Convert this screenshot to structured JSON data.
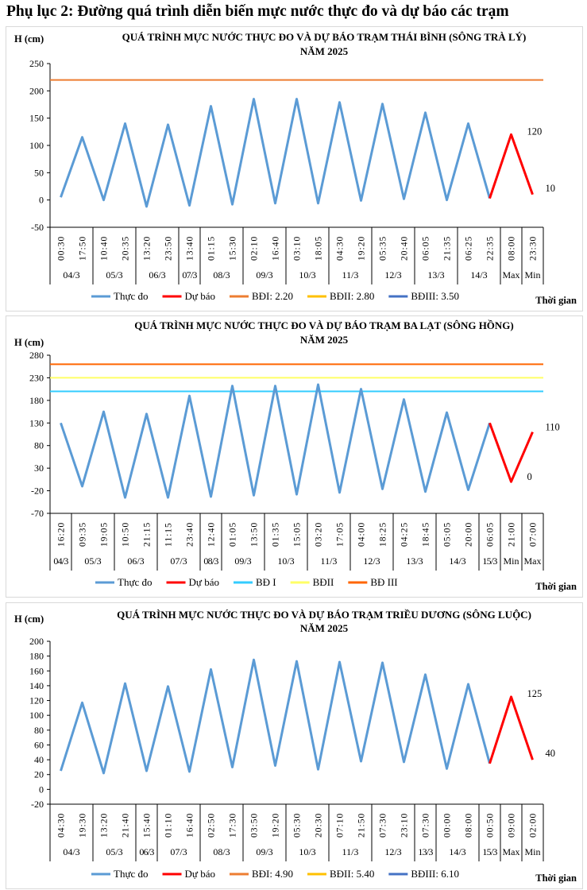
{
  "page_title": "Phụ lục 2: Đường quá trình diễn biến mực nước thực đo và dự báo các trạm",
  "chart_data": [
    {
      "type": "line",
      "title": [
        "QUÁ TRÌNH MỰC NƯỚC THỰC ĐO VÀ DỰ BÁO TRẠM THÁI BÌNH (SÔNG TRÀ LÝ)",
        "NĂM 2025"
      ],
      "ylabel": "H (cm)",
      "xlabel": "Thời gian",
      "ylim": [
        -50,
        250
      ],
      "ytick_step": 50,
      "times": [
        "00:30",
        "17:50",
        "10:40",
        "20:35",
        "13:20",
        "23:50",
        "13:40",
        "01:15",
        "15:30",
        "02:10",
        "16:40",
        "03:10",
        "18:05",
        "04:30",
        "19:20",
        "05:35",
        "20:40",
        "06:05",
        "21:35",
        "06:25",
        "22:35",
        "08:00",
        "23:30"
      ],
      "groups": [
        [
          "04/3",
          2
        ],
        [
          "05/3",
          2
        ],
        [
          "06/3",
          2
        ],
        [
          "07/3",
          1
        ],
        [
          "08/3",
          2
        ],
        [
          "09/3",
          2
        ],
        [
          "10/3",
          2
        ],
        [
          "11/3",
          2
        ],
        [
          "12/3",
          2
        ],
        [
          "13/3",
          2
        ],
        [
          "14/3",
          2
        ],
        [
          "Max",
          1
        ],
        [
          "Min",
          1
        ]
      ],
      "series": [
        {
          "name": "Thực đo",
          "color": "#5B9BD5",
          "values": [
            5,
            115,
            0,
            140,
            -12,
            138,
            -10,
            172,
            -8,
            185,
            -6,
            185,
            -6,
            179,
            -1,
            176,
            2,
            160,
            0,
            140,
            3,
            null,
            null
          ]
        },
        {
          "name": "Dự báo",
          "color": "#FF0000",
          "values": [
            null,
            null,
            null,
            null,
            null,
            null,
            null,
            null,
            null,
            null,
            null,
            null,
            null,
            null,
            null,
            null,
            null,
            null,
            null,
            null,
            3,
            120,
            10
          ],
          "labels": [
            null,
            null,
            null,
            null,
            null,
            null,
            null,
            null,
            null,
            null,
            null,
            null,
            null,
            null,
            null,
            null,
            null,
            null,
            null,
            null,
            null,
            "120",
            "10"
          ]
        }
      ],
      "thresholds": [
        {
          "name": "BĐI: 2.20",
          "color": "#ED7D31",
          "value": 220
        },
        {
          "name": "BĐII: 2.80",
          "color": "#FFC000",
          "value": 280
        },
        {
          "name": "BĐIII: 3.50",
          "color": "#4472C4",
          "value": 350
        }
      ]
    },
    {
      "type": "line",
      "title": [
        "QUÁ TRÌNH MỰC NƯỚC THỰC ĐO VÀ DỰ BÁO TRẠM BA LẠT (SÔNG HỒNG)",
        "NĂM 2025"
      ],
      "ylabel": "H (cm)",
      "xlabel": "Thời gian",
      "ylim": [
        -70,
        280
      ],
      "ytick_step": 50,
      "times": [
        "16:20",
        "09:35",
        "19:05",
        "10:50",
        "21:15",
        "11:15",
        "23:40",
        "12:40",
        "01:05",
        "13:50",
        "01:35",
        "15:05",
        "03:20",
        "17:05",
        "04:00",
        "18:25",
        "04:25",
        "18:45",
        "05:05",
        "20:00",
        "06:05",
        "21:00",
        "07:00"
      ],
      "groups": [
        [
          "04/3",
          1
        ],
        [
          "05/3",
          2
        ],
        [
          "06/3",
          2
        ],
        [
          "07/3",
          2
        ],
        [
          "08/3",
          1
        ],
        [
          "09/3",
          2
        ],
        [
          "10/3",
          2
        ],
        [
          "11/3",
          2
        ],
        [
          "12/3",
          2
        ],
        [
          "13/3",
          2
        ],
        [
          "14/3",
          2
        ],
        [
          "15/3",
          1
        ],
        [
          "Min",
          1
        ],
        [
          "Max",
          1
        ]
      ],
      "series": [
        {
          "name": "Thực đo",
          "color": "#5B9BD5",
          "values": [
            130,
            -10,
            155,
            -35,
            150,
            -35,
            190,
            -33,
            212,
            -30,
            212,
            -28,
            215,
            -24,
            205,
            -16,
            182,
            -22,
            153,
            -18,
            130,
            null,
            null
          ]
        },
        {
          "name": "Dự báo",
          "color": "#FF0000",
          "values": [
            null,
            null,
            null,
            null,
            null,
            null,
            null,
            null,
            null,
            null,
            null,
            null,
            null,
            null,
            null,
            null,
            null,
            null,
            null,
            null,
            130,
            0,
            110
          ],
          "labels": [
            null,
            null,
            null,
            null,
            null,
            null,
            null,
            null,
            null,
            null,
            null,
            null,
            null,
            null,
            null,
            null,
            null,
            null,
            null,
            null,
            null,
            "0",
            "110"
          ]
        }
      ],
      "thresholds": [
        {
          "name": "BĐ I",
          "color": "#33CCFF",
          "value": 200
        },
        {
          "name": "BĐII",
          "color": "#FFFF66",
          "value": 230
        },
        {
          "name": "BĐ III",
          "color": "#FF6600",
          "value": 260
        }
      ]
    },
    {
      "type": "line",
      "title": [
        "QUÁ TRÌNH MỰC NƯỚC THỰC ĐO VÀ DỰ BÁO TRẠM TRIỀU DƯƠNG  (SÔNG LUỘC)",
        "NĂM 2025"
      ],
      "ylabel": "H (cm)",
      "xlabel": "Thời gian",
      "ylim": [
        -20,
        200
      ],
      "ytick_step": 20,
      "times": [
        "04:30",
        "19:30",
        "13:20",
        "21:40",
        "15:40",
        "01:10",
        "16:40",
        "02:50",
        "17:30",
        "03:50",
        "19:20",
        "05:30",
        "20:30",
        "07:10",
        "21:50",
        "07:30",
        "23:10",
        "07:30",
        "00:00",
        "08:00",
        "00:50",
        "09:00",
        "02:00"
      ],
      "groups": [
        [
          "04/3",
          2
        ],
        [
          "05/3",
          2
        ],
        [
          "06/3",
          1
        ],
        [
          "07/3",
          2
        ],
        [
          "08/3",
          2
        ],
        [
          "09/3",
          2
        ],
        [
          "10/3",
          2
        ],
        [
          "11/3",
          2
        ],
        [
          "12/3",
          2
        ],
        [
          "13/3",
          1
        ],
        [
          "14/3",
          2
        ],
        [
          "15/3",
          1
        ],
        [
          "Max",
          1
        ],
        [
          "Min",
          1
        ]
      ],
      "series": [
        {
          "name": "Thực đo",
          "color": "#5B9BD5",
          "values": [
            25,
            117,
            22,
            143,
            25,
            139,
            24,
            162,
            30,
            175,
            32,
            173,
            27,
            172,
            38,
            171,
            37,
            155,
            28,
            142,
            35,
            null,
            null
          ]
        },
        {
          "name": "Dự báo",
          "color": "#FF0000",
          "values": [
            null,
            null,
            null,
            null,
            null,
            null,
            null,
            null,
            null,
            null,
            null,
            null,
            null,
            null,
            null,
            null,
            null,
            null,
            null,
            null,
            35,
            125,
            40
          ],
          "labels": [
            null,
            null,
            null,
            null,
            null,
            null,
            null,
            null,
            null,
            null,
            null,
            null,
            null,
            null,
            null,
            null,
            null,
            null,
            null,
            null,
            null,
            "125",
            "40"
          ]
        }
      ],
      "thresholds": [
        {
          "name": "BĐI: 4.90",
          "color": "#ED7D31",
          "value": 490
        },
        {
          "name": "BĐII: 5.40",
          "color": "#FFC000",
          "value": 540
        },
        {
          "name": "BĐIII: 6.10",
          "color": "#4472C4",
          "value": 610
        }
      ]
    }
  ]
}
